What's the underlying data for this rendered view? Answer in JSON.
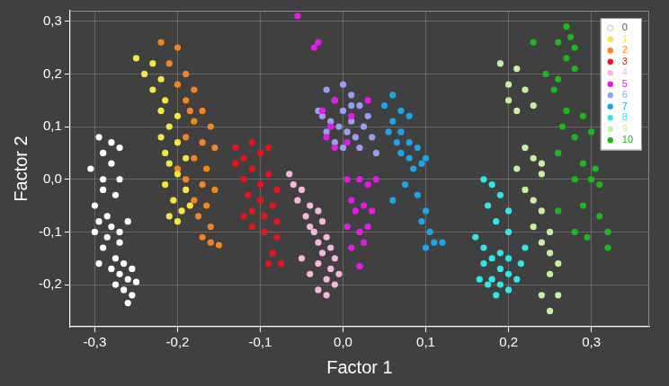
{
  "chart_data": {
    "type": "scatter",
    "x_label": "Factor 1",
    "y_label": "Factor 2",
    "xlim": [
      -0.33,
      0.37
    ],
    "ylim": [
      -0.28,
      0.32
    ],
    "xticks": [
      {
        "value": -0.3,
        "label": "-0,3"
      },
      {
        "value": -0.2,
        "label": "-0,2"
      },
      {
        "value": -0.1,
        "label": "-0,1"
      },
      {
        "value": 0,
        "label": "0,0"
      },
      {
        "value": 0.1,
        "label": "0,1"
      },
      {
        "value": 0.2,
        "label": "0,2"
      },
      {
        "value": 0.3,
        "label": "0,3"
      }
    ],
    "yticks": [
      {
        "value": -0.2,
        "label": "-0,2"
      },
      {
        "value": -0.1,
        "label": "-0,1"
      },
      {
        "value": 0,
        "label": "0,0"
      },
      {
        "value": 0.1,
        "label": "0,1"
      },
      {
        "value": 0.2,
        "label": "0,2"
      },
      {
        "value": 0.3,
        "label": "0,3"
      }
    ],
    "grid": true,
    "legend": "top right",
    "marker": "circle",
    "series": [
      {
        "name": "0",
        "color": "#ffffff",
        "values": [
          [
            -0.295,
            0.08
          ],
          [
            -0.28,
            0.07
          ],
          [
            -0.29,
            0.05
          ],
          [
            -0.27,
            0.06
          ],
          [
            -0.305,
            0.02
          ],
          [
            -0.28,
            0.03
          ],
          [
            -0.29,
            0.0
          ],
          [
            -0.27,
            0.0
          ],
          [
            -0.29,
            -0.02
          ],
          [
            -0.275,
            -0.03
          ],
          [
            -0.3,
            -0.05
          ],
          [
            -0.285,
            -0.07
          ],
          [
            -0.295,
            -0.08
          ],
          [
            -0.28,
            -0.09
          ],
          [
            -0.3,
            -0.1
          ],
          [
            -0.285,
            -0.11
          ],
          [
            -0.26,
            -0.08
          ],
          [
            -0.27,
            -0.1
          ],
          [
            -0.29,
            -0.13
          ],
          [
            -0.275,
            -0.15
          ],
          [
            -0.295,
            -0.16
          ],
          [
            -0.28,
            -0.17
          ],
          [
            -0.265,
            -0.16
          ],
          [
            -0.27,
            -0.18
          ],
          [
            -0.255,
            -0.17
          ],
          [
            -0.26,
            -0.19
          ],
          [
            -0.275,
            -0.2
          ],
          [
            -0.265,
            -0.21
          ],
          [
            -0.255,
            -0.22
          ],
          [
            -0.26,
            -0.235
          ],
          [
            -0.25,
            -0.195
          ],
          [
            -0.27,
            -0.12
          ]
        ]
      },
      {
        "name": "1",
        "color": "#f5e642",
        "values": [
          [
            -0.25,
            0.23
          ],
          [
            -0.23,
            0.22
          ],
          [
            -0.24,
            0.2
          ],
          [
            -0.22,
            0.19
          ],
          [
            -0.23,
            0.17
          ],
          [
            -0.215,
            0.15
          ],
          [
            -0.22,
            0.13
          ],
          [
            -0.2,
            0.12
          ],
          [
            -0.21,
            0.1
          ],
          [
            -0.22,
            0.08
          ],
          [
            -0.2,
            0.07
          ],
          [
            -0.215,
            0.05
          ],
          [
            -0.21,
            0.03
          ],
          [
            -0.2,
            0.01
          ],
          [
            -0.215,
            -0.01
          ],
          [
            -0.19,
            -0.02
          ],
          [
            -0.205,
            -0.04
          ],
          [
            -0.195,
            -0.06
          ],
          [
            -0.21,
            -0.07
          ],
          [
            -0.2,
            -0.08
          ],
          [
            -0.185,
            -0.05
          ],
          [
            -0.19,
            0.04
          ]
        ]
      },
      {
        "name": "2",
        "color": "#f5841f",
        "values": [
          [
            -0.22,
            0.26
          ],
          [
            -0.2,
            0.25
          ],
          [
            -0.21,
            0.22
          ],
          [
            -0.19,
            0.2
          ],
          [
            -0.2,
            0.18
          ],
          [
            -0.18,
            0.17
          ],
          [
            -0.19,
            0.15
          ],
          [
            -0.17,
            0.13
          ],
          [
            -0.18,
            0.11
          ],
          [
            -0.16,
            0.1
          ],
          [
            -0.19,
            0.08
          ],
          [
            -0.17,
            0.07
          ],
          [
            -0.155,
            0.06
          ],
          [
            -0.18,
            0.04
          ],
          [
            -0.165,
            0.02
          ],
          [
            -0.19,
            0.0
          ],
          [
            -0.17,
            -0.01
          ],
          [
            -0.155,
            -0.02
          ],
          [
            -0.18,
            -0.04
          ],
          [
            -0.165,
            -0.05
          ],
          [
            -0.175,
            -0.07
          ],
          [
            -0.16,
            -0.09
          ],
          [
            -0.17,
            -0.11
          ],
          [
            -0.16,
            -0.12
          ],
          [
            -0.15,
            -0.125
          ],
          [
            -0.2,
            0.02
          ],
          [
            -0.185,
            0.13
          ]
        ]
      },
      {
        "name": "3",
        "color": "#e8141c",
        "values": [
          [
            -0.13,
            0.06
          ],
          [
            -0.11,
            0.07
          ],
          [
            -0.09,
            0.06
          ],
          [
            -0.12,
            0.04
          ],
          [
            -0.1,
            0.05
          ],
          [
            -0.13,
            0.03
          ],
          [
            -0.11,
            0.02
          ],
          [
            -0.12,
            0.0
          ],
          [
            -0.09,
            0.01
          ],
          [
            -0.1,
            -0.01
          ],
          [
            -0.115,
            -0.03
          ],
          [
            -0.08,
            -0.02
          ],
          [
            -0.1,
            -0.04
          ],
          [
            -0.085,
            -0.05
          ],
          [
            -0.11,
            -0.06
          ],
          [
            -0.095,
            -0.07
          ],
          [
            -0.08,
            -0.08
          ],
          [
            -0.11,
            -0.09
          ],
          [
            -0.095,
            -0.1
          ],
          [
            -0.08,
            -0.11
          ],
          [
            -0.085,
            -0.14
          ],
          [
            -0.075,
            -0.16
          ],
          [
            -0.09,
            -0.16
          ],
          [
            -0.12,
            -0.07
          ]
        ]
      },
      {
        "name": "4",
        "color": "#f5b8dc",
        "values": [
          [
            -0.065,
            0.01
          ],
          [
            -0.06,
            -0.01
          ],
          [
            -0.05,
            -0.02
          ],
          [
            -0.055,
            -0.04
          ],
          [
            -0.04,
            -0.05
          ],
          [
            -0.045,
            -0.07
          ],
          [
            -0.03,
            -0.06
          ],
          [
            -0.04,
            -0.09
          ],
          [
            -0.025,
            -0.08
          ],
          [
            -0.035,
            -0.1
          ],
          [
            -0.02,
            -0.11
          ],
          [
            -0.03,
            -0.12
          ],
          [
            -0.015,
            -0.13
          ],
          [
            -0.025,
            -0.14
          ],
          [
            -0.01,
            -0.15
          ],
          [
            -0.03,
            -0.16
          ],
          [
            -0.015,
            -0.17
          ],
          [
            -0.04,
            -0.18
          ],
          [
            -0.02,
            -0.19
          ],
          [
            -0.01,
            -0.2
          ],
          [
            -0.03,
            -0.21
          ],
          [
            -0.02,
            -0.22
          ],
          [
            -0.005,
            -0.18
          ],
          [
            -0.05,
            -0.15
          ]
        ]
      },
      {
        "name": "5",
        "color": "#e619e6",
        "values": [
          [
            -0.055,
            0.31
          ],
          [
            -0.03,
            0.26
          ],
          [
            -0.035,
            0.25
          ],
          [
            -0.025,
            0.13
          ],
          [
            -0.015,
            0.1
          ],
          [
            -0.02,
            0.08
          ],
          [
            -0.01,
            0.06
          ],
          [
            0.005,
            0.07
          ],
          [
            0.01,
            0.12
          ],
          [
            0.03,
            0.15
          ],
          [
            -0.01,
            0.15
          ],
          [
            0.005,
            0.0
          ],
          [
            0.02,
            0.0
          ],
          [
            0.03,
            -0.01
          ],
          [
            0.01,
            -0.04
          ],
          [
            0.025,
            -0.05
          ],
          [
            0.015,
            -0.06
          ],
          [
            0.035,
            -0.06
          ],
          [
            0.005,
            -0.09
          ],
          [
            0.02,
            -0.1
          ],
          [
            0.03,
            -0.09
          ],
          [
            0.025,
            -0.12
          ],
          [
            0.01,
            -0.13
          ],
          [
            0.02,
            -0.165
          ],
          [
            0.04,
            0.0
          ]
        ]
      },
      {
        "name": "6",
        "color": "#9a9ef0",
        "values": [
          [
            -0.02,
            0.17
          ],
          [
            0.0,
            0.18
          ],
          [
            0.01,
            0.16
          ],
          [
            -0.01,
            0.15
          ],
          [
            0.02,
            0.14
          ],
          [
            -0.03,
            0.13
          ],
          [
            0.0,
            0.13
          ],
          [
            0.03,
            0.12
          ],
          [
            -0.015,
            0.11
          ],
          [
            0.01,
            0.11
          ],
          [
            0.025,
            0.1
          ],
          [
            -0.005,
            0.1
          ],
          [
            -0.02,
            0.09
          ],
          [
            0.005,
            0.09
          ],
          [
            0.015,
            0.08
          ],
          [
            0.035,
            0.08
          ],
          [
            -0.01,
            0.07
          ],
          [
            0.02,
            0.06
          ],
          [
            0.0,
            0.06
          ],
          [
            0.04,
            0.05
          ],
          [
            -0.025,
            0.12
          ],
          [
            0.01,
            0.14
          ]
        ]
      },
      {
        "name": "7",
        "color": "#1aa6e8",
        "values": [
          [
            0.06,
            0.16
          ],
          [
            0.05,
            0.14
          ],
          [
            0.07,
            0.13
          ],
          [
            0.06,
            0.11
          ],
          [
            0.08,
            0.12
          ],
          [
            0.055,
            0.09
          ],
          [
            0.07,
            0.09
          ],
          [
            0.065,
            0.07
          ],
          [
            0.08,
            0.07
          ],
          [
            0.07,
            0.05
          ],
          [
            0.09,
            0.06
          ],
          [
            0.08,
            0.04
          ],
          [
            0.095,
            0.03
          ],
          [
            0.085,
            0.02
          ],
          [
            0.1,
            0.04
          ],
          [
            0.075,
            -0.01
          ],
          [
            0.09,
            -0.03
          ],
          [
            0.1,
            -0.06
          ],
          [
            0.095,
            -0.08
          ],
          [
            0.105,
            -0.1
          ],
          [
            0.11,
            -0.12
          ],
          [
            0.12,
            -0.12
          ],
          [
            0.1,
            -0.13
          ],
          [
            0.06,
            -0.04
          ]
        ]
      },
      {
        "name": "8",
        "color": "#33e6e6",
        "values": [
          [
            0.17,
            0.0
          ],
          [
            0.18,
            -0.01
          ],
          [
            0.19,
            -0.03
          ],
          [
            0.175,
            -0.05
          ],
          [
            0.2,
            -0.06
          ],
          [
            0.185,
            -0.08
          ],
          [
            0.2,
            -0.1
          ],
          [
            0.16,
            -0.11
          ],
          [
            0.17,
            -0.13
          ],
          [
            0.19,
            -0.14
          ],
          [
            0.18,
            -0.15
          ],
          [
            0.2,
            -0.15
          ],
          [
            0.215,
            -0.16
          ],
          [
            0.17,
            -0.16
          ],
          [
            0.19,
            -0.17
          ],
          [
            0.2,
            -0.18
          ],
          [
            0.18,
            -0.19
          ],
          [
            0.21,
            -0.19
          ],
          [
            0.19,
            -0.2
          ],
          [
            0.175,
            -0.2
          ],
          [
            0.2,
            -0.21
          ],
          [
            0.185,
            -0.22
          ],
          [
            0.165,
            -0.19
          ],
          [
            0.22,
            -0.13
          ]
        ]
      },
      {
        "name": "9",
        "color": "#c8f0a0",
        "values": [
          [
            0.19,
            0.22
          ],
          [
            0.21,
            0.21
          ],
          [
            0.2,
            0.18
          ],
          [
            0.22,
            0.17
          ],
          [
            0.2,
            0.15
          ],
          [
            0.23,
            0.14
          ],
          [
            0.21,
            0.13
          ],
          [
            0.22,
            0.06
          ],
          [
            0.23,
            0.04
          ],
          [
            0.21,
            0.02
          ],
          [
            0.24,
            0.01
          ],
          [
            0.22,
            -0.02
          ],
          [
            0.23,
            -0.04
          ],
          [
            0.24,
            -0.06
          ],
          [
            0.23,
            -0.09
          ],
          [
            0.25,
            -0.1
          ],
          [
            0.24,
            -0.12
          ],
          [
            0.25,
            -0.14
          ],
          [
            0.26,
            -0.16
          ],
          [
            0.25,
            -0.18
          ],
          [
            0.26,
            -0.22
          ],
          [
            0.24,
            -0.22
          ],
          [
            0.25,
            -0.25
          ],
          [
            0.24,
            0.03
          ]
        ]
      },
      {
        "name": "10",
        "color": "#1ab81a",
        "values": [
          [
            0.27,
            0.29
          ],
          [
            0.275,
            0.27
          ],
          [
            0.26,
            0.26
          ],
          [
            0.28,
            0.25
          ],
          [
            0.27,
            0.23
          ],
          [
            0.28,
            0.21
          ],
          [
            0.23,
            0.26
          ],
          [
            0.245,
            0.2
          ],
          [
            0.26,
            0.19
          ],
          [
            0.255,
            0.17
          ],
          [
            0.27,
            0.13
          ],
          [
            0.29,
            0.12
          ],
          [
            0.265,
            0.1
          ],
          [
            0.28,
            0.08
          ],
          [
            0.3,
            0.09
          ],
          [
            0.26,
            0.05
          ],
          [
            0.29,
            0.03
          ],
          [
            0.305,
            0.02
          ],
          [
            0.3,
            0.0
          ],
          [
            0.28,
            0.0
          ],
          [
            0.31,
            -0.01
          ],
          [
            0.29,
            -0.05
          ],
          [
            0.31,
            -0.07
          ],
          [
            0.28,
            -0.1
          ],
          [
            0.295,
            -0.11
          ],
          [
            0.32,
            -0.1
          ],
          [
            0.32,
            -0.13
          ],
          [
            0.26,
            -0.06
          ]
        ]
      }
    ]
  }
}
